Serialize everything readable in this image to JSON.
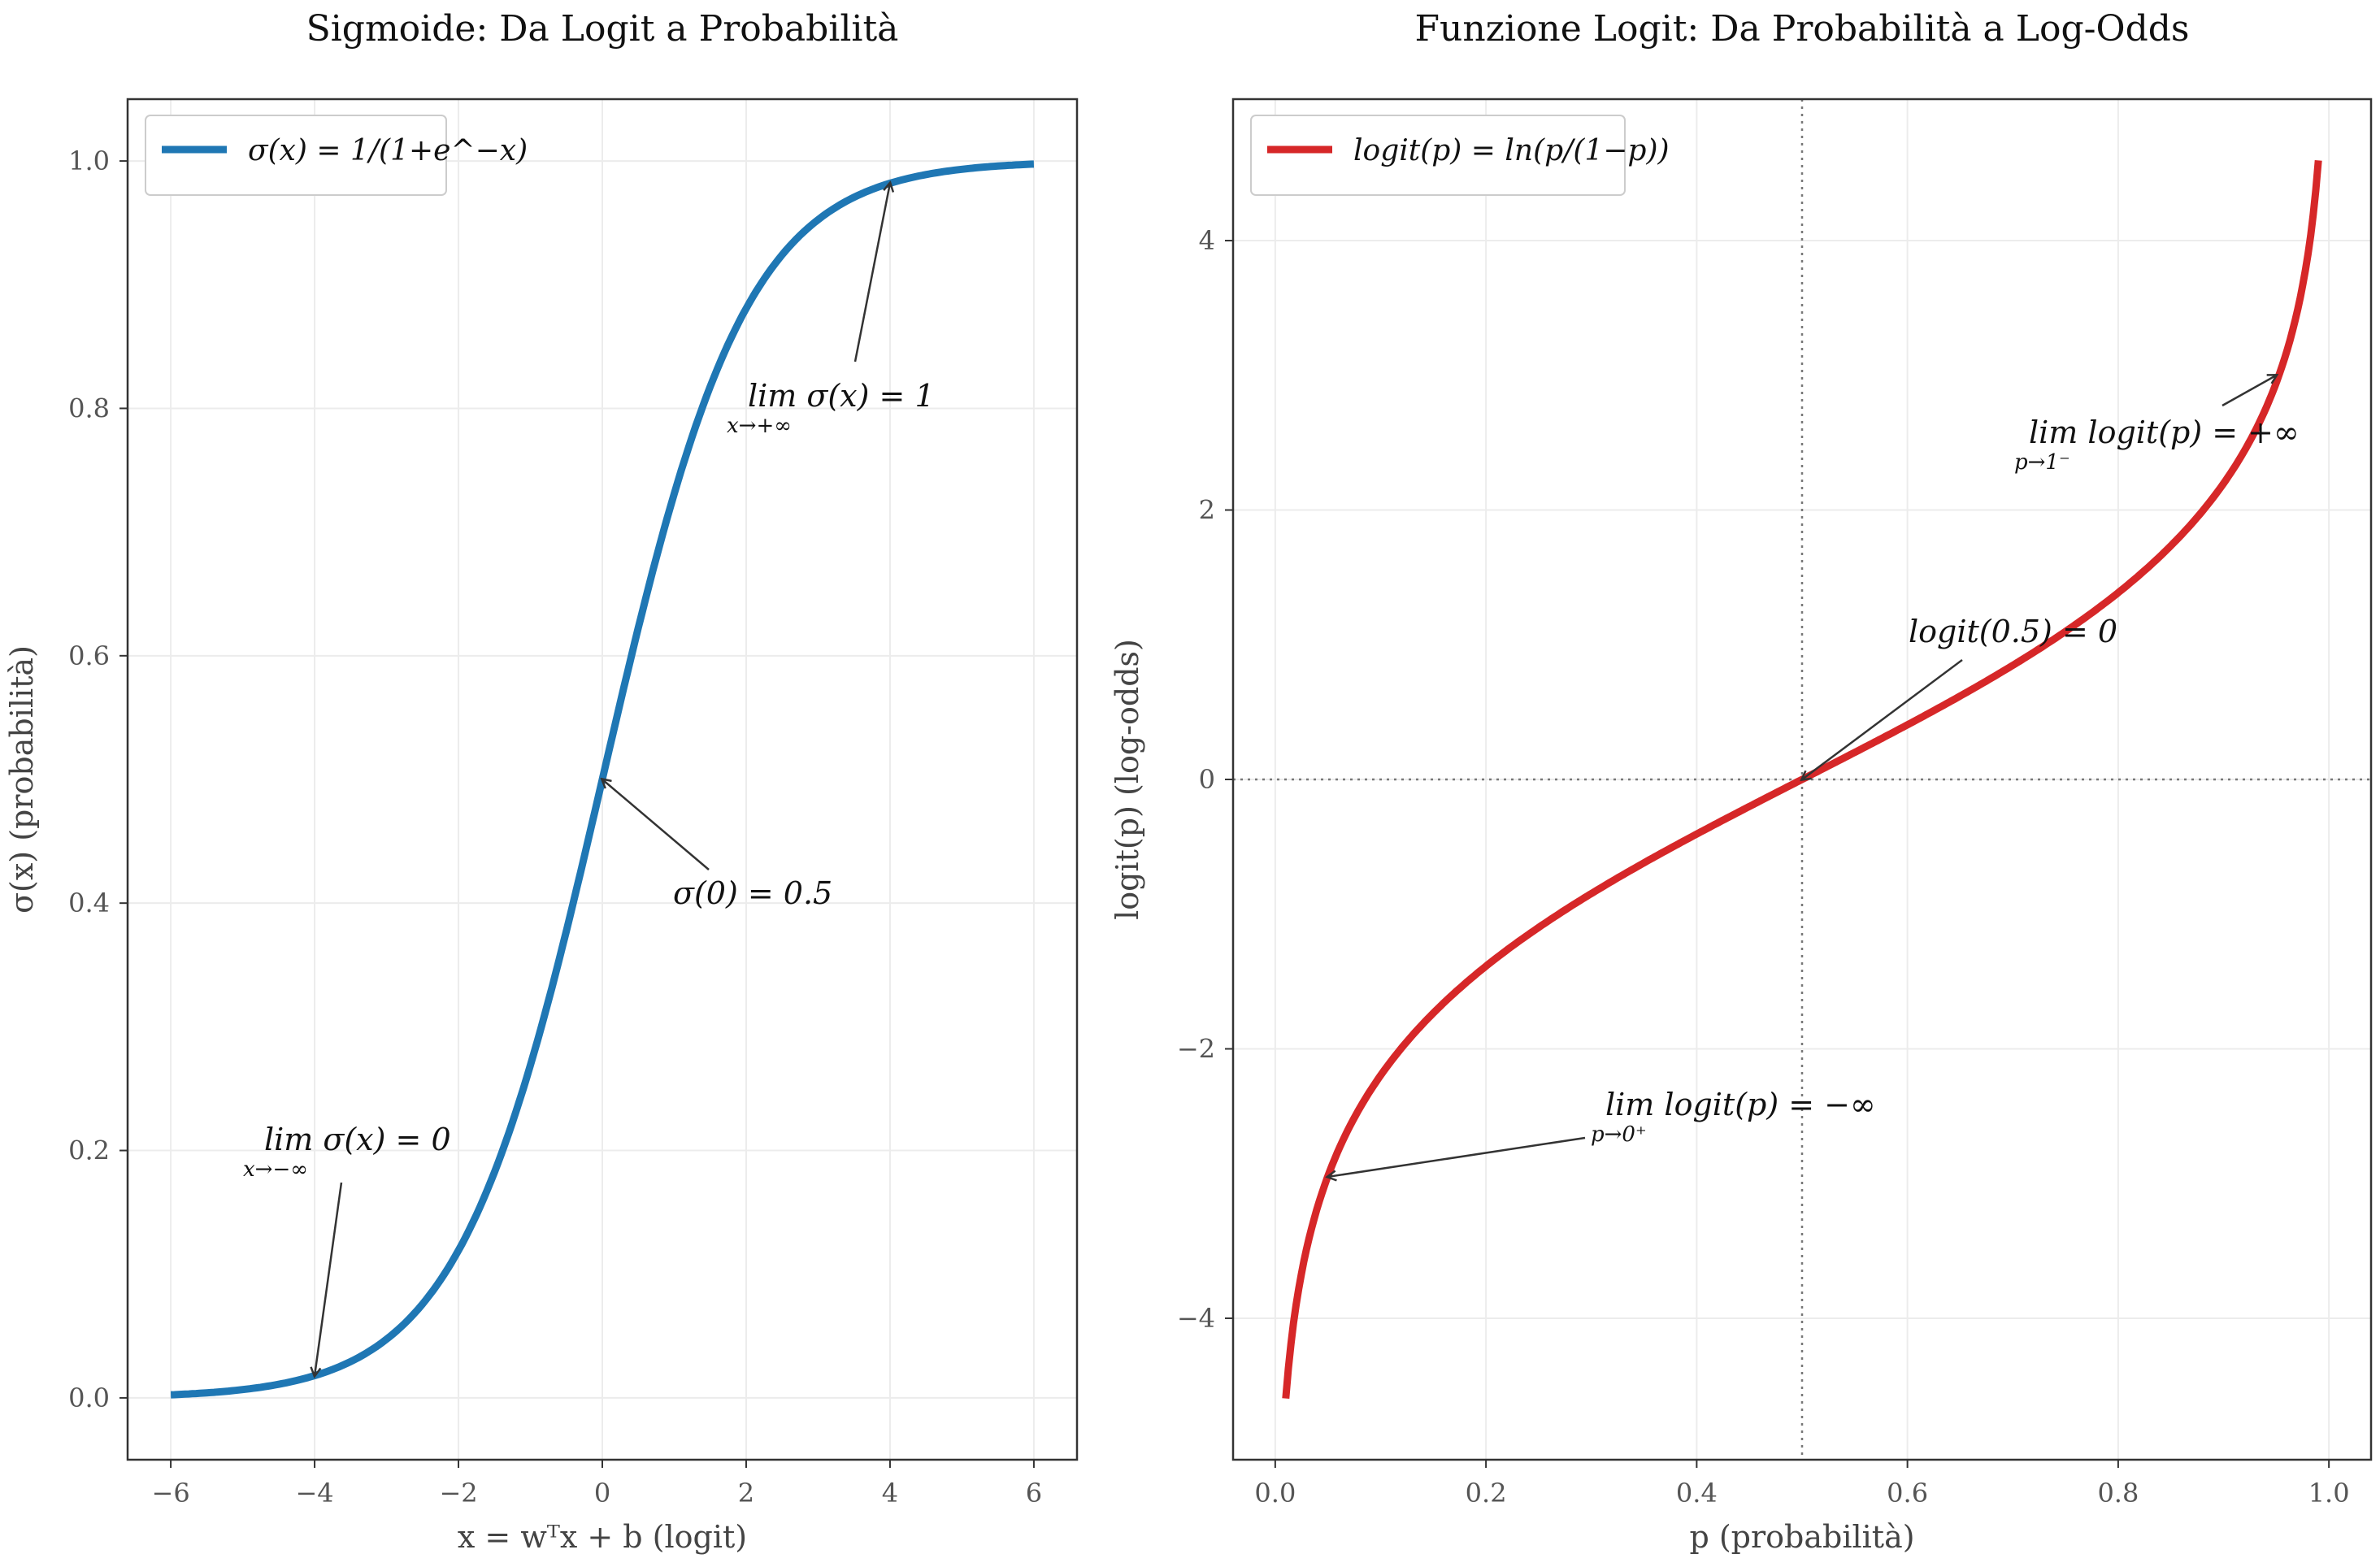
{
  "chart_data": [
    {
      "type": "line",
      "title": "Sigmoide: Da Logit a Probabilità",
      "xlabel": "x = wᵀx + b (logit)",
      "ylabel": "σ(x) (probabilità)",
      "xlim": [
        -6.6,
        6.6
      ],
      "ylim": [
        -0.05,
        1.05
      ],
      "xticks": [
        -6,
        -4,
        -2,
        0,
        2,
        4,
        6
      ],
      "xtick_labels": [
        "−6",
        "−4",
        "−2",
        "0",
        "2",
        "4",
        "6"
      ],
      "yticks": [
        0.0,
        0.2,
        0.4,
        0.6,
        0.8,
        1.0
      ],
      "ytick_labels": [
        "0.0",
        "0.2",
        "0.4",
        "0.6",
        "0.8",
        "1.0"
      ],
      "grid": true,
      "legend_position": "upper left",
      "series": [
        {
          "name": "σ(x) = 1/(1+e^−x)",
          "color": "#1f77b4",
          "x": [
            -6,
            -5,
            -4,
            -3,
            -2,
            -1,
            0,
            1,
            2,
            3,
            4,
            5,
            6
          ],
          "y": [
            0.0025,
            0.0067,
            0.018,
            0.047,
            0.119,
            0.269,
            0.5,
            0.731,
            0.881,
            0.953,
            0.982,
            0.993,
            0.9975
          ]
        }
      ],
      "annotations": [
        {
          "text": "σ(0) = 0.5",
          "x": 0,
          "y": 0.5,
          "text_x": 1.0,
          "text_y": 0.4
        },
        {
          "text": "lim σ(x) = 1",
          "sub": "x→+∞",
          "x": 4,
          "y": 0.982,
          "text_x": 2.0,
          "text_y": 0.8
        },
        {
          "text": "lim σ(x) = 0",
          "sub": "x→−∞",
          "x": -4,
          "y": 0.018,
          "text_x": -5.0,
          "text_y": 0.19
        }
      ]
    },
    {
      "type": "line",
      "title": "Funzione Logit: Da Probabilità a Log-Odds",
      "xlabel": "p (probabilità)",
      "ylabel": "logit(p) (log-odds)",
      "xlim": [
        -0.04,
        1.04
      ],
      "ylim": [
        -5.05,
        5.05
      ],
      "xticks": [
        0.0,
        0.2,
        0.4,
        0.6,
        0.8,
        1.0
      ],
      "xtick_labels": [
        "0.0",
        "0.2",
        "0.4",
        "0.6",
        "0.8",
        "1.0"
      ],
      "yticks": [
        -4,
        -2,
        0,
        2,
        4
      ],
      "ytick_labels": [
        "−4",
        "−2",
        "0",
        "2",
        "4"
      ],
      "grid": true,
      "legend_position": "upper left",
      "reference_lines": {
        "x": 0.5,
        "y": 0
      },
      "series": [
        {
          "name": "logit(p) = ln(p/(1−p))",
          "color": "#d62728",
          "x": [
            0.01,
            0.02,
            0.03,
            0.05,
            0.1,
            0.2,
            0.3,
            0.4,
            0.5,
            0.6,
            0.7,
            0.8,
            0.9,
            0.95,
            0.97,
            0.98,
            0.99
          ],
          "y": [
            -4.595,
            -3.892,
            -3.476,
            -2.944,
            -2.197,
            -1.386,
            -0.847,
            -0.405,
            0.0,
            0.405,
            0.847,
            1.386,
            2.197,
            2.944,
            3.476,
            3.892,
            4.595
          ]
        }
      ],
      "annotations": [
        {
          "text": "logit(0.5) = 0",
          "x": 0.5,
          "y": 0,
          "text_x": 0.6,
          "text_y": 1.0
        },
        {
          "text": "lim logit(p) = +∞",
          "sub": "p→1⁻",
          "x": 0.95,
          "y": 3.0,
          "text_x": 0.7,
          "text_y": 2.5
        },
        {
          "text": "lim logit(p) = −∞",
          "sub": "p→0⁺",
          "x": 0.05,
          "y": -2.95,
          "text_x": 0.3,
          "text_y": -2.5
        }
      ]
    }
  ]
}
